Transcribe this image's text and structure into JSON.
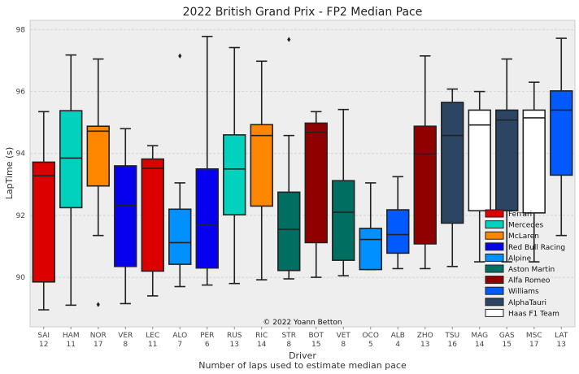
{
  "chart_data": {
    "type": "box",
    "title": "2022 British Grand Prix - FP2 Median Pace",
    "xlabel": "Driver",
    "xlabel2": "Number of laps used to estimate median pace",
    "ylabel": "LapTime (s)",
    "ylim": [
      88.4,
      98.3
    ],
    "yticks": [
      90,
      92,
      94,
      96,
      98
    ],
    "grid": true,
    "legend_position": "lower-right",
    "annotation": "© 2022 Yoann Betton",
    "teams": [
      {
        "name": "Ferrari",
        "color": "#dc0000"
      },
      {
        "name": "Mercedes",
        "color": "#00d2be"
      },
      {
        "name": "McLaren",
        "color": "#ff8700"
      },
      {
        "name": "Red Bull Racing",
        "color": "#0600ef"
      },
      {
        "name": "Alpine",
        "color": "#0090ff"
      },
      {
        "name": "Aston Martin",
        "color": "#006f62"
      },
      {
        "name": "Alfa Romeo",
        "color": "#900000"
      },
      {
        "name": "Williams",
        "color": "#005aff"
      },
      {
        "name": "AlphaTauri",
        "color": "#2b4562"
      },
      {
        "name": "Haas F1 Team",
        "color": "#ffffff"
      }
    ],
    "drivers": [
      {
        "code": "SAI",
        "laps": "12",
        "team": 0,
        "whislo": 88.95,
        "q1": 89.85,
        "med": 93.28,
        "q3": 93.72,
        "whishi": 95.35,
        "fliers": []
      },
      {
        "code": "HAM",
        "laps": "11",
        "team": 1,
        "whislo": 89.1,
        "q1": 92.25,
        "med": 93.85,
        "q3": 95.38,
        "whishi": 97.18,
        "fliers": []
      },
      {
        "code": "NOR",
        "laps": "17",
        "team": 2,
        "whislo": 91.35,
        "q1": 92.95,
        "med": 94.72,
        "q3": 94.88,
        "whishi": 97.05,
        "fliers": [
          89.12
        ]
      },
      {
        "code": "VER",
        "laps": "8",
        "team": 3,
        "whislo": 89.15,
        "q1": 90.35,
        "med": 92.32,
        "q3": 93.6,
        "whishi": 94.8,
        "fliers": []
      },
      {
        "code": "LEC",
        "laps": "11",
        "team": 0,
        "whislo": 89.4,
        "q1": 90.2,
        "med": 93.52,
        "q3": 93.82,
        "whishi": 94.25,
        "fliers": []
      },
      {
        "code": "ALO",
        "laps": "7",
        "team": 4,
        "whislo": 89.7,
        "q1": 90.42,
        "med": 91.12,
        "q3": 92.2,
        "whishi": 93.05,
        "fliers": [
          97.15
        ]
      },
      {
        "code": "PER",
        "laps": "6",
        "team": 3,
        "whislo": 89.75,
        "q1": 90.3,
        "med": 91.68,
        "q3": 93.5,
        "whishi": 97.78,
        "fliers": []
      },
      {
        "code": "RUS",
        "laps": "13",
        "team": 1,
        "whislo": 89.8,
        "q1": 92.02,
        "med": 93.5,
        "q3": 94.6,
        "whishi": 97.42,
        "fliers": []
      },
      {
        "code": "RIC",
        "laps": "14",
        "team": 2,
        "whislo": 89.92,
        "q1": 92.3,
        "med": 94.58,
        "q3": 94.93,
        "whishi": 96.98,
        "fliers": []
      },
      {
        "code": "STR",
        "laps": "8",
        "team": 5,
        "whislo": 89.95,
        "q1": 90.22,
        "med": 91.55,
        "q3": 92.75,
        "whishi": 94.58,
        "fliers": [
          97.68
        ]
      },
      {
        "code": "BOT",
        "laps": "15",
        "team": 6,
        "whislo": 90.0,
        "q1": 91.12,
        "med": 94.68,
        "q3": 94.98,
        "whishi": 95.35,
        "fliers": []
      },
      {
        "code": "VET",
        "laps": "8",
        "team": 5,
        "whislo": 90.05,
        "q1": 90.55,
        "med": 92.1,
        "q3": 93.12,
        "whishi": 95.42,
        "fliers": []
      },
      {
        "code": "OCO",
        "laps": "5",
        "team": 4,
        "whislo": 90.25,
        "q1": 90.25,
        "med": 91.22,
        "q3": 91.58,
        "whishi": 93.05,
        "fliers": []
      },
      {
        "code": "ALB",
        "laps": "4",
        "team": 7,
        "whislo": 90.28,
        "q1": 90.78,
        "med": 91.38,
        "q3": 92.18,
        "whishi": 93.25,
        "fliers": []
      },
      {
        "code": "ZHO",
        "laps": "13",
        "team": 6,
        "whislo": 90.28,
        "q1": 91.08,
        "med": 93.98,
        "q3": 94.88,
        "whishi": 97.15,
        "fliers": []
      },
      {
        "code": "TSU",
        "laps": "16",
        "team": 8,
        "whislo": 90.35,
        "q1": 91.75,
        "med": 94.58,
        "q3": 95.65,
        "whishi": 96.08,
        "fliers": []
      },
      {
        "code": "MAG",
        "laps": "14",
        "team": 9,
        "whislo": 90.5,
        "q1": 92.15,
        "med": 94.92,
        "q3": 95.4,
        "whishi": 96.0,
        "fliers": []
      },
      {
        "code": "GAS",
        "laps": "15",
        "team": 8,
        "whislo": 90.5,
        "q1": 92.15,
        "med": 95.08,
        "q3": 95.4,
        "whishi": 97.05,
        "fliers": []
      },
      {
        "code": "MSC",
        "laps": "17",
        "team": 9,
        "whislo": 90.5,
        "q1": 92.08,
        "med": 95.15,
        "q3": 95.4,
        "whishi": 96.3,
        "fliers": []
      },
      {
        "code": "LAT",
        "laps": "13",
        "team": 7,
        "whislo": 91.35,
        "q1": 93.3,
        "med": 95.4,
        "q3": 96.02,
        "whishi": 97.72,
        "fliers": []
      }
    ]
  }
}
